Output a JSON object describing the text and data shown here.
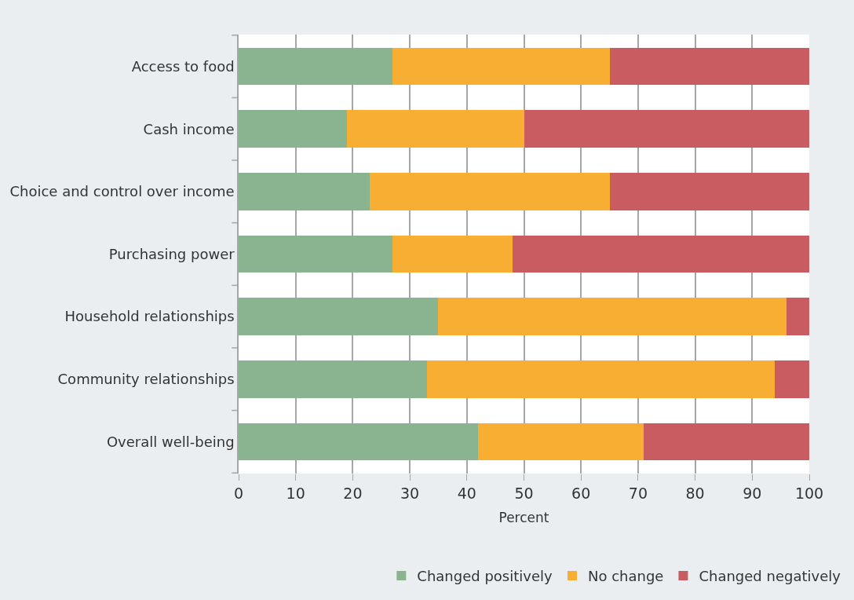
{
  "chart_data": {
    "type": "bar",
    "orientation": "horizontal",
    "stacked": true,
    "xlabel": "Percent",
    "categories": [
      "Access to food",
      "Cash income",
      "Choice and control over income",
      "Purchasing power",
      "Household relationships",
      "Community relationships",
      "Overall well-being"
    ],
    "series": [
      {
        "name": "Changed positively",
        "color": "#8ab48f",
        "values": [
          27,
          19,
          23,
          27,
          35,
          33,
          42
        ]
      },
      {
        "name": "No change",
        "color": "#f8ae33",
        "values": [
          38,
          31,
          42,
          21,
          61,
          61,
          29
        ]
      },
      {
        "name": "Changed negatively",
        "color": "#c85c60",
        "values": [
          35,
          50,
          35,
          52,
          4,
          6,
          29
        ]
      }
    ],
    "xlim": [
      0,
      100
    ],
    "xticks": [
      0,
      10,
      20,
      30,
      40,
      50,
      60,
      70,
      80,
      90,
      100
    ],
    "grid": "x",
    "legend": "bottom"
  }
}
